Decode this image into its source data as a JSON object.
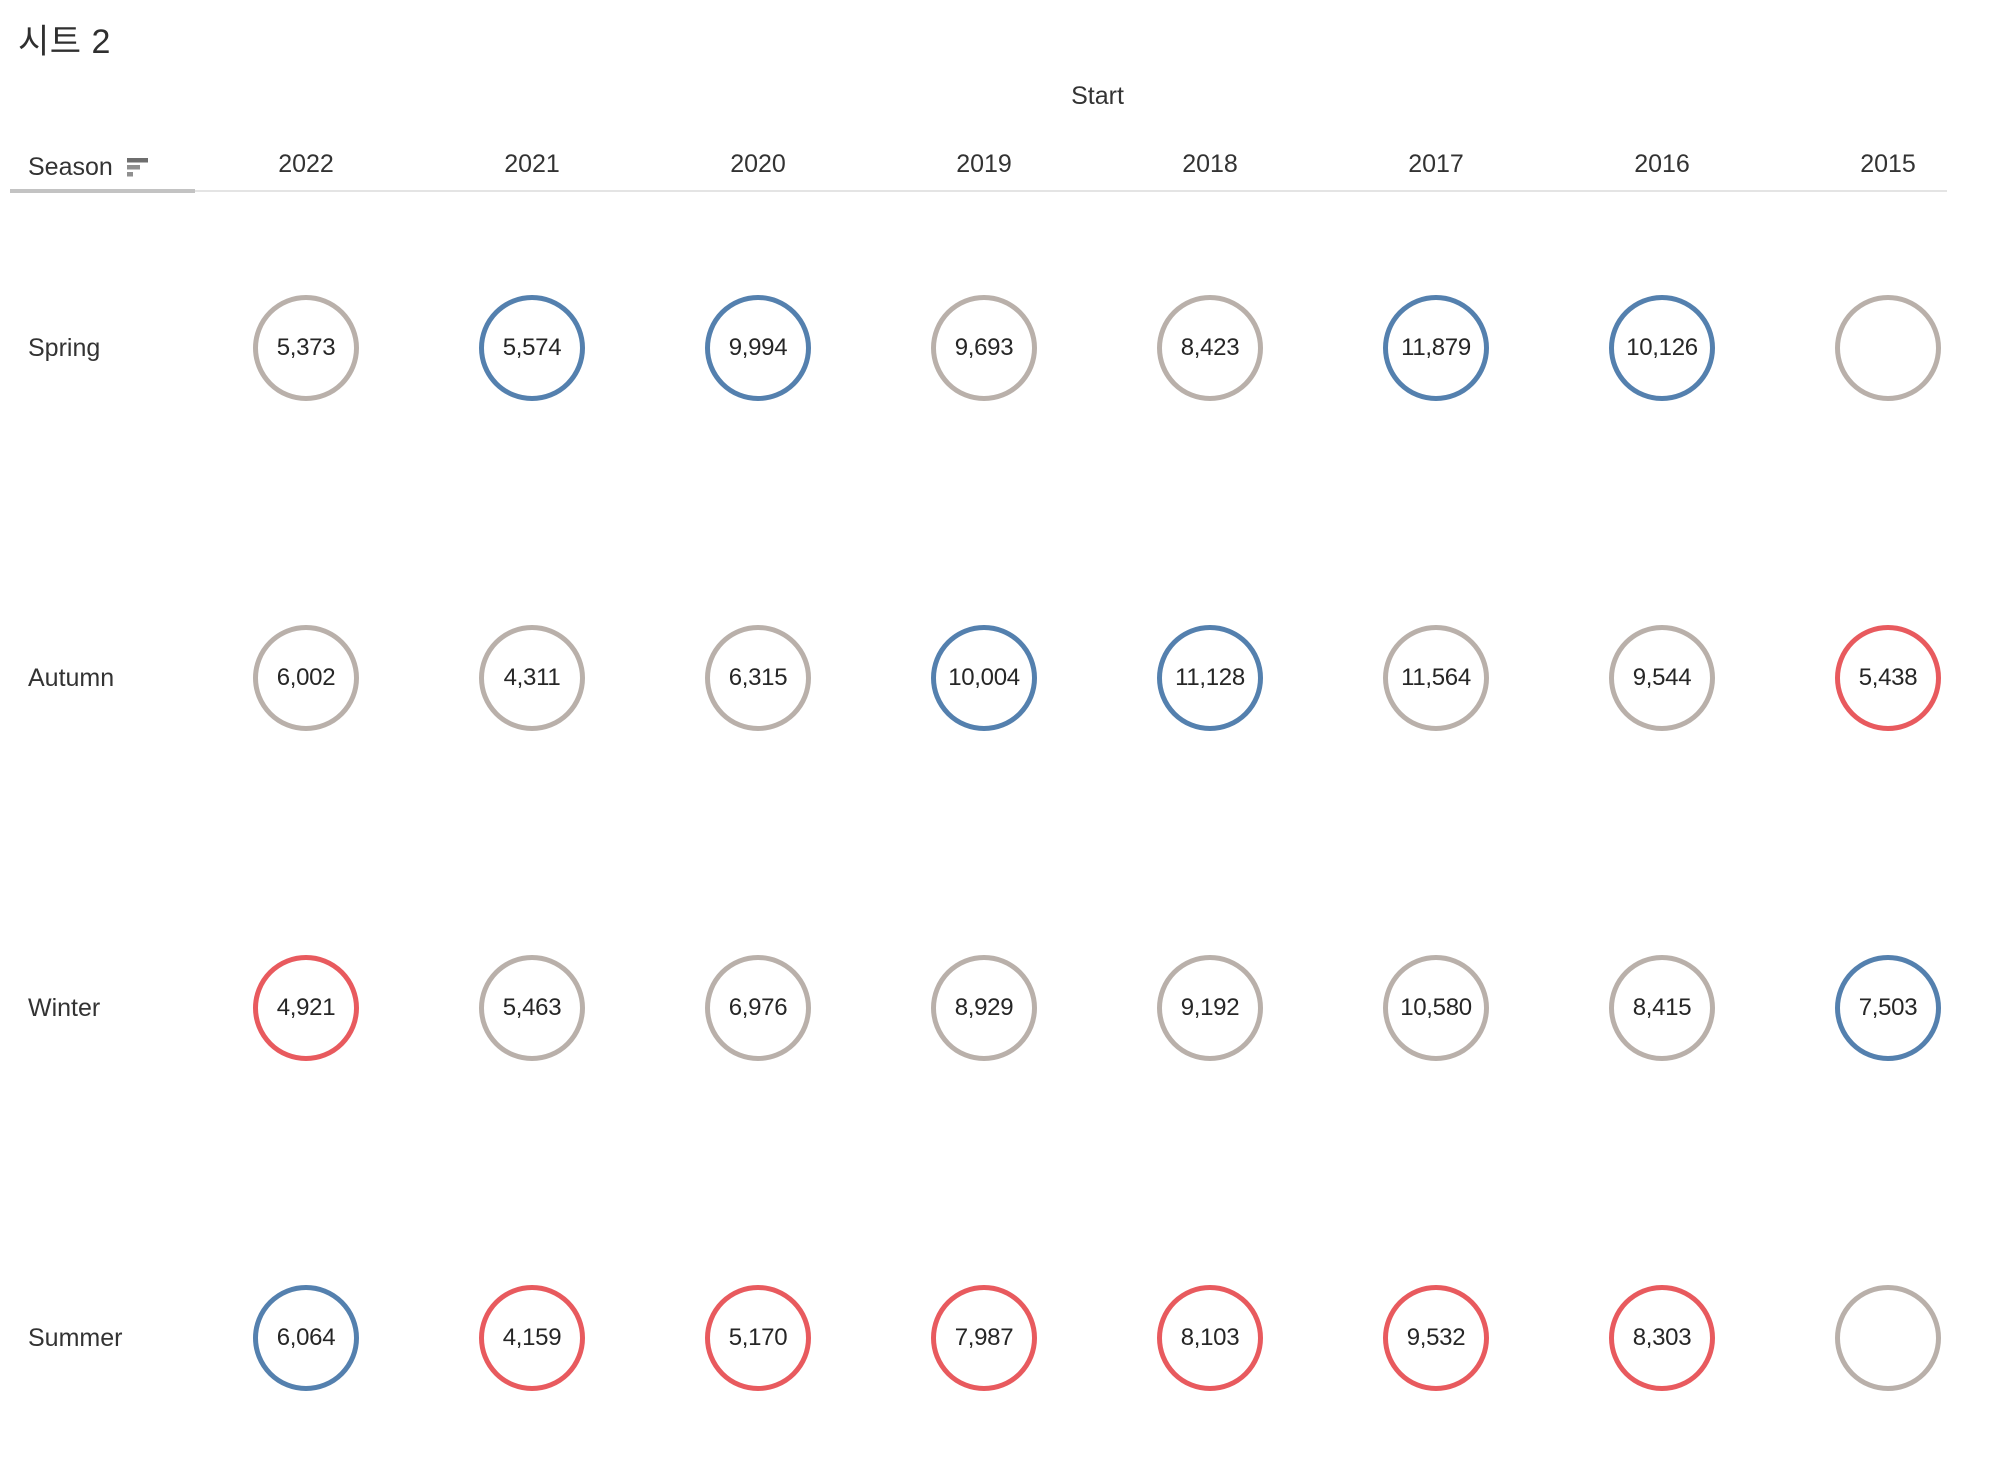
{
  "title": "시트 2",
  "columns_header": {
    "field": "Start"
  },
  "rows_header": {
    "field": "Season",
    "sort_icon": "sort-descending-icon"
  },
  "colors": {
    "gray": "#b9b0aa",
    "blue": "#5480ae",
    "red": "#e85a5e",
    "header_text": "#333333",
    "value_text": "#262626",
    "divider_dark": "#c3c3c3",
    "divider_light": "#e4e4e4"
  },
  "chart_data": {
    "type": "table",
    "title": "시트 2",
    "columns_field": "Start",
    "rows_field": "Season",
    "columns": [
      "2022",
      "2021",
      "2020",
      "2019",
      "2018",
      "2017",
      "2016",
      "2015"
    ],
    "rows": [
      {
        "label": "Spring",
        "cells": [
          {
            "value": "5,373",
            "color": "gray"
          },
          {
            "value": "5,574",
            "color": "blue"
          },
          {
            "value": "9,994",
            "color": "blue"
          },
          {
            "value": "9,693",
            "color": "gray"
          },
          {
            "value": "8,423",
            "color": "gray"
          },
          {
            "value": "11,879",
            "color": "blue"
          },
          {
            "value": "10,126",
            "color": "blue"
          },
          {
            "value": null,
            "color": "gray"
          }
        ]
      },
      {
        "label": "Autumn",
        "cells": [
          {
            "value": "6,002",
            "color": "gray"
          },
          {
            "value": "4,311",
            "color": "gray"
          },
          {
            "value": "6,315",
            "color": "gray"
          },
          {
            "value": "10,004",
            "color": "blue"
          },
          {
            "value": "11,128",
            "color": "blue"
          },
          {
            "value": "11,564",
            "color": "gray"
          },
          {
            "value": "9,544",
            "color": "gray"
          },
          {
            "value": "5,438",
            "color": "red"
          }
        ]
      },
      {
        "label": "Winter",
        "cells": [
          {
            "value": "4,921",
            "color": "red"
          },
          {
            "value": "5,463",
            "color": "gray"
          },
          {
            "value": "6,976",
            "color": "gray"
          },
          {
            "value": "8,929",
            "color": "gray"
          },
          {
            "value": "9,192",
            "color": "gray"
          },
          {
            "value": "10,580",
            "color": "gray"
          },
          {
            "value": "8,415",
            "color": "gray"
          },
          {
            "value": "7,503",
            "color": "blue"
          }
        ]
      },
      {
        "label": "Summer",
        "cells": [
          {
            "value": "6,064",
            "color": "blue"
          },
          {
            "value": "4,159",
            "color": "red"
          },
          {
            "value": "5,170",
            "color": "red"
          },
          {
            "value": "7,987",
            "color": "red"
          },
          {
            "value": "8,103",
            "color": "red"
          },
          {
            "value": "9,532",
            "color": "red"
          },
          {
            "value": "8,303",
            "color": "red"
          },
          {
            "value": null,
            "color": "gray"
          }
        ]
      }
    ]
  }
}
